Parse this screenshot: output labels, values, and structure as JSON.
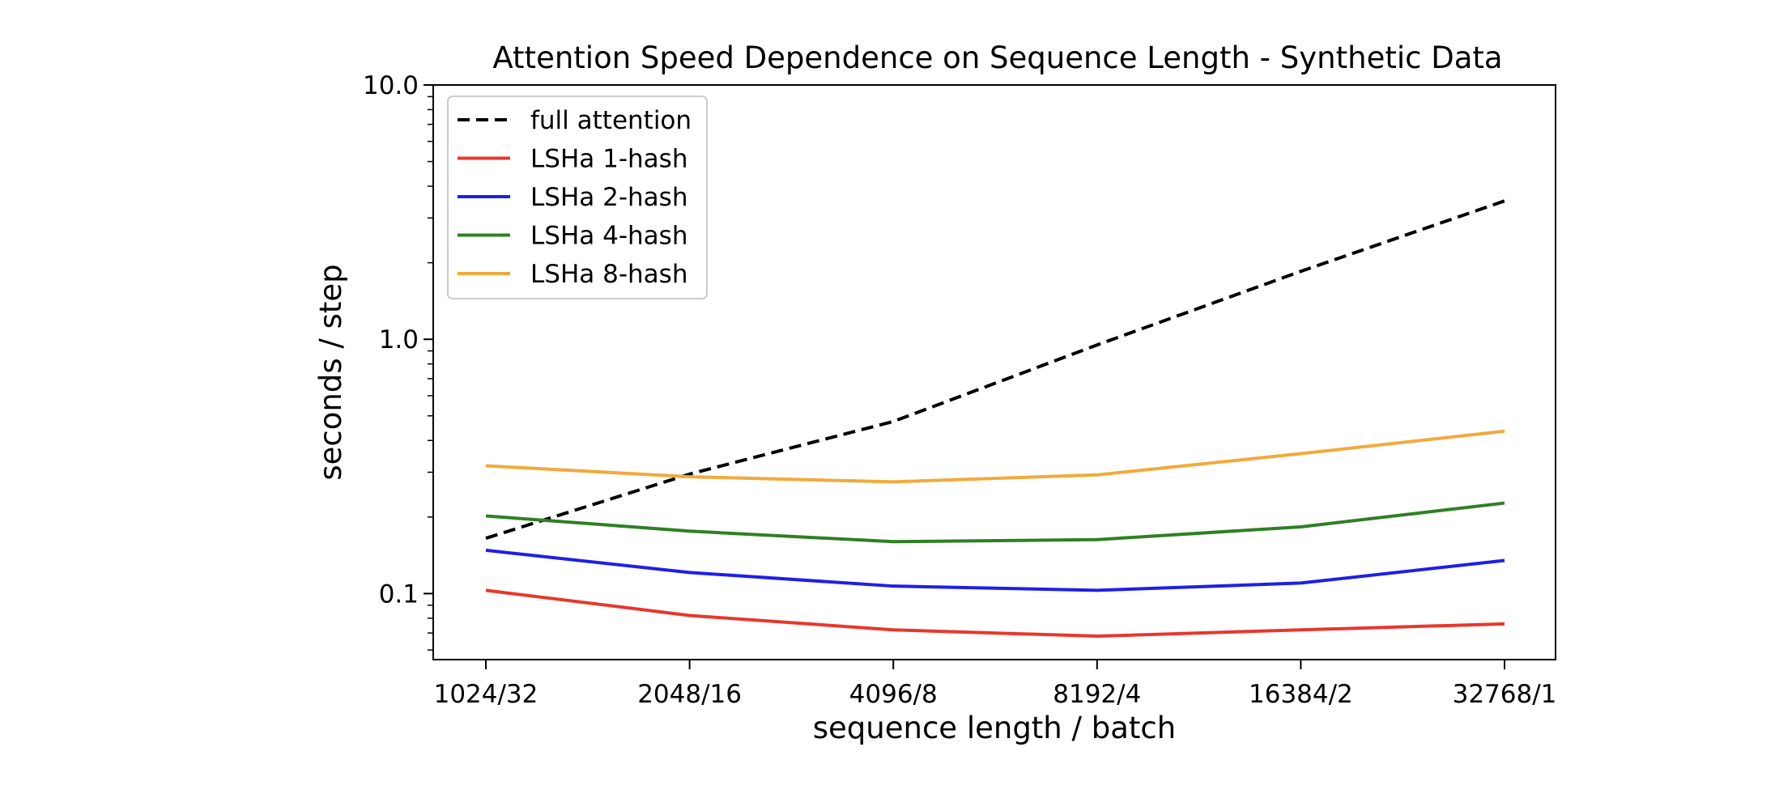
{
  "chart_data": {
    "type": "line",
    "title": "Attention Speed Dependence on Sequence Length - Synthetic Data",
    "xlabel": "sequence length / batch",
    "ylabel": "seconds / step",
    "y_scale": "log",
    "ylim": [
      0.055,
      10.0
    ],
    "y_ticks": [
      {
        "value": 0.1,
        "label": "0.1"
      },
      {
        "value": 1.0,
        "label": "1.0"
      },
      {
        "value": 10.0,
        "label": "10.0"
      }
    ],
    "categories": [
      "1024/32",
      "2048/16",
      "4096/8",
      "8192/4",
      "16384/2",
      "32768/1"
    ],
    "grid": false,
    "legend_position": "top-left",
    "series": [
      {
        "name": "full attention",
        "color": "#000000",
        "dash": "dashed",
        "values": [
          0.165,
          0.295,
          0.475,
          0.95,
          1.85,
          3.5
        ]
      },
      {
        "name": "LSHa 1-hash",
        "color": "#e8372c",
        "dash": "solid",
        "values": [
          0.103,
          0.082,
          0.072,
          0.068,
          0.072,
          0.076
        ]
      },
      {
        "name": "LSHa 2-hash",
        "color": "#1f1fe8",
        "dash": "solid",
        "values": [
          0.148,
          0.121,
          0.107,
          0.103,
          0.11,
          0.135
        ]
      },
      {
        "name": "LSHa 4-hash",
        "color": "#2e8023",
        "dash": "solid",
        "values": [
          0.202,
          0.176,
          0.16,
          0.163,
          0.183,
          0.227
        ]
      },
      {
        "name": "LSHa 8-hash",
        "color": "#f2a93b",
        "dash": "solid",
        "values": [
          0.318,
          0.288,
          0.275,
          0.293,
          0.355,
          0.435
        ]
      }
    ]
  }
}
